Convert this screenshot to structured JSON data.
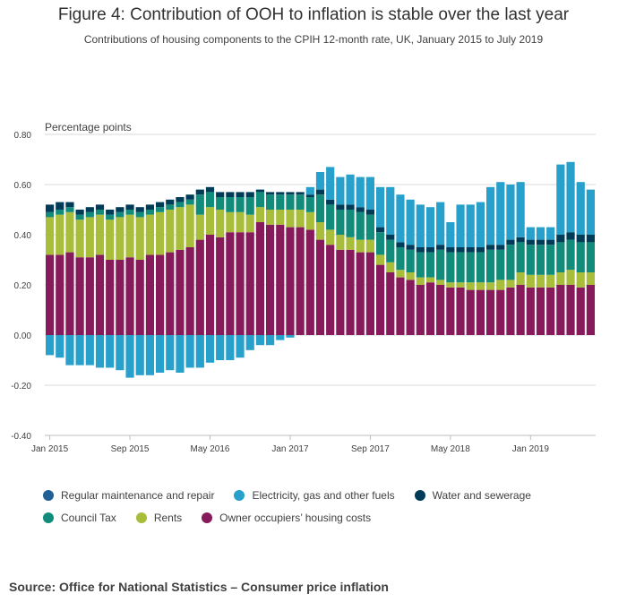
{
  "title": "Figure 4: Contribution of OOH to inflation is stable over the last year",
  "subtitle": "Contributions of housing components to the CPIH 12-month rate, UK, January 2015 to July 2019",
  "source": "Source: Office for National Statistics – Consumer price inflation",
  "colors": {
    "regular_maintenance": "#206095",
    "electricity": "#27a0cc",
    "water": "#003c57",
    "council_tax": "#118c7b",
    "rents": "#a8bd3a",
    "ooh": "#871a5b",
    "grid": "#d9d9d9",
    "axis": "#414042"
  },
  "chart_data": {
    "type": "bar",
    "stacked": true,
    "ylabel": "Percentage points",
    "ylim": [
      -0.4,
      0.8
    ],
    "yticks": [
      -0.4,
      -0.2,
      0.0,
      0.2,
      0.4,
      0.6,
      0.8
    ],
    "ytick_labels": [
      "-0.40",
      "-0.20",
      "0.00",
      "0.20",
      "0.40",
      "0.60",
      "0.80"
    ],
    "xtick_labels": [
      {
        "index": 0,
        "label": "Jan 2015"
      },
      {
        "index": 8,
        "label": "Sep 2015"
      },
      {
        "index": 16,
        "label": "May 2016"
      },
      {
        "index": 24,
        "label": "Jan 2017"
      },
      {
        "index": 32,
        "label": "Sep 2017"
      },
      {
        "index": 40,
        "label": "May 2018"
      },
      {
        "index": 48,
        "label": "Jan 2019"
      }
    ],
    "grid": true,
    "legend_position": "bottom",
    "categories": [
      "Jan 2015",
      "Feb 2015",
      "Mar 2015",
      "Apr 2015",
      "May 2015",
      "Jun 2015",
      "Jul 2015",
      "Aug 2015",
      "Sep 2015",
      "Oct 2015",
      "Nov 2015",
      "Dec 2015",
      "Jan 2016",
      "Feb 2016",
      "Mar 2016",
      "Apr 2016",
      "May 2016",
      "Jun 2016",
      "Jul 2016",
      "Aug 2016",
      "Sep 2016",
      "Oct 2016",
      "Nov 2016",
      "Dec 2016",
      "Jan 2017",
      "Feb 2017",
      "Mar 2017",
      "Apr 2017",
      "May 2017",
      "Jun 2017",
      "Jul 2017",
      "Aug 2017",
      "Sep 2017",
      "Oct 2017",
      "Nov 2017",
      "Dec 2017",
      "Jan 2018",
      "Feb 2018",
      "Mar 2018",
      "Apr 2018",
      "May 2018",
      "Jun 2018",
      "Jul 2018",
      "Aug 2018",
      "Sep 2018",
      "Oct 2018",
      "Nov 2018",
      "Dec 2018",
      "Jan 2019",
      "Feb 2019",
      "Mar 2019",
      "Apr 2019",
      "May 2019",
      "Jun 2019",
      "Jul 2019"
    ],
    "series": [
      {
        "name": "Regular maintenance and repair",
        "key": "regular_maintenance",
        "values": [
          0,
          0,
          0,
          0,
          0,
          0,
          0,
          0,
          0,
          0,
          0,
          0,
          0,
          0,
          0,
          0,
          0,
          0,
          0,
          0,
          0,
          0,
          0,
          0,
          0,
          0,
          0,
          0,
          0,
          0,
          0,
          0,
          0,
          0,
          0,
          0,
          0,
          0,
          0,
          0,
          0,
          0,
          0,
          0,
          0,
          0,
          0,
          0,
          0,
          0,
          0,
          0,
          0,
          0,
          0
        ]
      },
      {
        "name": "Owner occupiers’ housing costs",
        "key": "ooh",
        "values": [
          0.32,
          0.32,
          0.33,
          0.31,
          0.31,
          0.32,
          0.3,
          0.3,
          0.31,
          0.3,
          0.32,
          0.32,
          0.33,
          0.34,
          0.35,
          0.38,
          0.4,
          0.39,
          0.41,
          0.41,
          0.41,
          0.45,
          0.44,
          0.44,
          0.43,
          0.43,
          0.42,
          0.38,
          0.36,
          0.34,
          0.34,
          0.33,
          0.33,
          0.28,
          0.25,
          0.23,
          0.22,
          0.2,
          0.21,
          0.2,
          0.19,
          0.19,
          0.18,
          0.18,
          0.18,
          0.18,
          0.19,
          0.2,
          0.19,
          0.19,
          0.19,
          0.2,
          0.2,
          0.19,
          0.2
        ]
      },
      {
        "name": "Rents",
        "key": "rents",
        "values": [
          0.15,
          0.16,
          0.16,
          0.15,
          0.16,
          0.16,
          0.16,
          0.17,
          0.17,
          0.17,
          0.16,
          0.17,
          0.17,
          0.17,
          0.17,
          0.1,
          0.11,
          0.11,
          0.08,
          0.08,
          0.07,
          0.06,
          0.06,
          0.06,
          0.07,
          0.07,
          0.07,
          0.07,
          0.06,
          0.06,
          0.05,
          0.05,
          0.05,
          0.04,
          0.04,
          0.03,
          0.03,
          0.03,
          0.02,
          0.02,
          0.02,
          0.02,
          0.03,
          0.03,
          0.03,
          0.04,
          0.03,
          0.05,
          0.05,
          0.05,
          0.05,
          0.05,
          0.06,
          0.06,
          0.05
        ]
      },
      {
        "name": "Council Tax",
        "key": "council_tax",
        "values": [
          0.02,
          0.02,
          0.02,
          0.02,
          0.02,
          0.02,
          0.02,
          0.02,
          0.02,
          0.02,
          0.02,
          0.02,
          0.02,
          0.02,
          0.02,
          0.08,
          0.06,
          0.05,
          0.06,
          0.06,
          0.07,
          0.06,
          0.06,
          0.06,
          0.06,
          0.06,
          0.06,
          0.11,
          0.1,
          0.1,
          0.11,
          0.11,
          0.1,
          0.09,
          0.09,
          0.09,
          0.09,
          0.1,
          0.1,
          0.12,
          0.12,
          0.12,
          0.12,
          0.12,
          0.13,
          0.12,
          0.14,
          0.12,
          0.12,
          0.12,
          0.12,
          0.12,
          0.12,
          0.12,
          0.12
        ]
      },
      {
        "name": "Water and sewerage",
        "key": "water",
        "values": [
          0.03,
          0.03,
          0.02,
          0.02,
          0.02,
          0.02,
          0.02,
          0.02,
          0.02,
          0.02,
          0.02,
          0.02,
          0.02,
          0.02,
          0.02,
          0.02,
          0.02,
          0.02,
          0.02,
          0.02,
          0.02,
          0.01,
          0.01,
          0.01,
          0.01,
          0.01,
          0.01,
          0.02,
          0.02,
          0.02,
          0.02,
          0.02,
          0.02,
          0.02,
          0.02,
          0.02,
          0.02,
          0.02,
          0.02,
          0.02,
          0.02,
          0.02,
          0.02,
          0.02,
          0.02,
          0.02,
          0.02,
          0.02,
          0.02,
          0.02,
          0.02,
          0.03,
          0.03,
          0.03,
          0.03
        ]
      },
      {
        "name": "Electricity, gas and other fuels",
        "key": "electricity",
        "values": [
          -0.08,
          -0.09,
          -0.12,
          -0.12,
          -0.12,
          -0.13,
          -0.13,
          -0.14,
          -0.17,
          -0.16,
          -0.16,
          -0.15,
          -0.14,
          -0.15,
          -0.13,
          -0.13,
          -0.11,
          -0.1,
          -0.1,
          -0.09,
          -0.06,
          -0.04,
          -0.04,
          -0.02,
          -0.01,
          0.0,
          0.03,
          0.07,
          0.13,
          0.11,
          0.12,
          0.12,
          0.13,
          0.16,
          0.19,
          0.19,
          0.18,
          0.17,
          0.16,
          0.17,
          0.1,
          0.17,
          0.17,
          0.18,
          0.23,
          0.25,
          0.22,
          0.22,
          0.05,
          0.05,
          0.05,
          0.28,
          0.28,
          0.21,
          0.18
        ]
      }
    ]
  },
  "legend": [
    {
      "key": "regular_maintenance",
      "label": "Regular maintenance and repair"
    },
    {
      "key": "electricity",
      "label": "Electricity, gas and other fuels"
    },
    {
      "key": "water",
      "label": "Water and sewerage"
    },
    {
      "key": "council_tax",
      "label": "Council Tax"
    },
    {
      "key": "rents",
      "label": "Rents"
    },
    {
      "key": "ooh",
      "label": "Owner occupiers’ housing costs"
    }
  ]
}
